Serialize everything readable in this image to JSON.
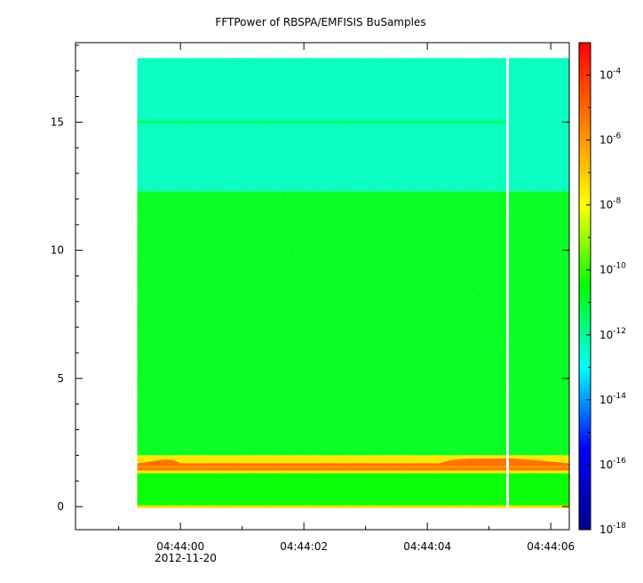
{
  "chart_data": {
    "type": "heatmap",
    "title": "FFTPower of RBSPA/EMFISIS  BuSamples",
    "xlabel": "",
    "ylabel": "",
    "x_ticks": [
      "04:44:00",
      "04:44:02",
      "04:44:04",
      "04:44:06"
    ],
    "x_date_label": "2012-11-20",
    "x_range_seconds": [
      -1.7,
      6.3
    ],
    "data_x_range_seconds": [
      -0.7,
      6.3
    ],
    "gap_seconds": 5.3,
    "y_ticks": [
      0,
      5,
      10,
      15
    ],
    "ylim": [
      -0.9,
      18.1
    ],
    "data_y_range": [
      0,
      17.5
    ],
    "colorbar": {
      "scale": "log",
      "range": [
        1e-18,
        0.001
      ],
      "tick_labels": [
        {
          "base": "10",
          "exp": "-4"
        },
        {
          "base": "10",
          "exp": "-6"
        },
        {
          "base": "10",
          "exp": "-8"
        },
        {
          "base": "10",
          "exp": "-10"
        },
        {
          "base": "10",
          "exp": "-12"
        },
        {
          "base": "10",
          "exp": "-14"
        },
        {
          "base": "10",
          "exp": "-16"
        },
        {
          "base": "10",
          "exp": "-18"
        }
      ],
      "tick_values": [
        -4,
        -6,
        -8,
        -10,
        -12,
        -14,
        -16,
        -18
      ]
    },
    "bands": [
      {
        "y_range": [
          12.3,
          17.5
        ],
        "level": -12.4
      },
      {
        "y_range": [
          2.0,
          12.3
        ],
        "level": -10.8
      },
      {
        "y_range": [
          1.3,
          2.0
        ],
        "level": -7.5
      },
      {
        "y_range": [
          0.0,
          1.3
        ],
        "level": -10.5
      }
    ],
    "features": {
      "line_15": {
        "y": 15.0,
        "level": -11.0
      },
      "peak_band": {
        "y_center": 1.55,
        "level": -5.0
      }
    },
    "colormap": [
      "#00008b",
      "#0000ff",
      "#00ffff",
      "#00ff00",
      "#ffff00",
      "#ff7f00",
      "#ff0000"
    ]
  }
}
